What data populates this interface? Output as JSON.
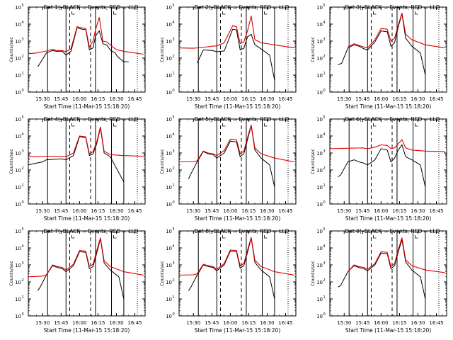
{
  "figure": {
    "start_time_label": "Start Time (11-Mar-15 15:18:20)",
    "ylabel": "Counts/sec",
    "xtick_labels": [
      "15:30",
      "15:45",
      "16:00",
      "16:15",
      "16:30",
      "16:45"
    ],
    "ytick_labels": [
      "10",
      "10",
      "10",
      "10",
      "10",
      "10"
    ],
    "ytick_exponents": [
      "0",
      "1",
      "2",
      "3",
      "4",
      "5"
    ],
    "colors": {
      "events": "#000000",
      "lld": "#e00000",
      "axes": "#000000"
    }
  },
  "chart_data": [
    {
      "type": "line",
      "title": "Det 1(–BLACK = Events, RED = LLD",
      "ylim": [
        1,
        100000
      ],
      "yscale": "log",
      "xlim": [
        "15:18:20",
        "16:53:20"
      ],
      "vlines_solid": [
        "15:34",
        "15:49",
        "16:13",
        "16:26",
        "16:36"
      ],
      "vlines_dashed": [
        "15:52",
        "16:09"
      ],
      "vlines_dotted": [
        "16:47"
      ],
      "series": [
        {
          "name": "Events",
          "color": "#000000",
          "x": [
            "15:26",
            "15:27",
            "15:33",
            "15:38",
            "15:41",
            "15:46",
            "15:49",
            "15:53",
            "15:58",
            "16:02",
            "16:05",
            "16:08",
            "16:11",
            "16:13",
            "16:16",
            "16:19",
            "16:22",
            "16:25",
            "16:29",
            "16:31",
            "16:36",
            "16:40"
          ],
          "y": [
            30,
            40,
            200,
            280,
            250,
            250,
            150,
            250,
            6000,
            5000,
            4800,
            300,
            400,
            2000,
            4000,
            700,
            600,
            300,
            200,
            120,
            60,
            60
          ]
        },
        {
          "name": "LLD",
          "color": "#e00000",
          "x": [
            "15:18",
            "15:25",
            "15:33",
            "15:38",
            "15:41",
            "15:46",
            "15:49",
            "15:53",
            "15:58",
            "16:02",
            "16:05",
            "16:08",
            "16:11",
            "16:13",
            "16:16",
            "16:19",
            "16:22",
            "16:25",
            "16:29",
            "16:31",
            "16:36",
            "16:52"
          ],
          "y": [
            180,
            200,
            260,
            330,
            280,
            270,
            240,
            350,
            7000,
            6000,
            5500,
            450,
            1000,
            4500,
            25000,
            1000,
            900,
            600,
            350,
            300,
            250,
            170
          ]
        }
      ]
    },
    {
      "type": "line",
      "title": "Det 2(–BLACK = Events, RED = LLD",
      "ylim": [
        1,
        100000
      ],
      "yscale": "log",
      "xlim": [
        "15:18:20",
        "16:53:20"
      ],
      "vlines_solid": [
        "15:34",
        "15:49",
        "16:13",
        "16:26",
        "16:36"
      ],
      "vlines_dashed": [
        "15:52",
        "16:09"
      ],
      "vlines_dotted": [
        "16:47"
      ],
      "series": [
        {
          "name": "Events",
          "color": "#000000",
          "x": [
            "15:33",
            "15:38",
            "15:45",
            "15:49",
            "15:55",
            "16:02",
            "16:05",
            "16:08",
            "16:11",
            "16:14",
            "16:17",
            "16:20",
            "16:25",
            "16:32",
            "16:36"
          ],
          "y": [
            50,
            300,
            280,
            240,
            260,
            5000,
            4500,
            300,
            380,
            1800,
            2500,
            600,
            350,
            150,
            5
          ]
        },
        {
          "name": "LLD",
          "color": "#e00000",
          "x": [
            "15:18",
            "15:30",
            "15:38",
            "15:45",
            "15:49",
            "15:55",
            "16:02",
            "16:05",
            "16:08",
            "16:11",
            "16:14",
            "16:17",
            "16:20",
            "16:25",
            "16:36",
            "16:52"
          ],
          "y": [
            400,
            380,
            420,
            500,
            520,
            800,
            8000,
            7000,
            700,
            900,
            4000,
            30000,
            1200,
            800,
            600,
            400
          ]
        }
      ]
    },
    {
      "type": "line",
      "title": "Det 3(–BLACK = Events, RED = LLD",
      "ylim": [
        1,
        100000
      ],
      "yscale": "log",
      "xlim": [
        "15:18:20",
        "16:53:20"
      ],
      "vlines_solid": [
        "15:34",
        "15:49",
        "16:13",
        "16:26",
        "16:36"
      ],
      "vlines_dashed": [
        "15:52",
        "16:09"
      ],
      "vlines_dotted": [
        "16:47"
      ],
      "series": [
        {
          "name": "Events",
          "color": "#000000",
          "x": [
            "15:25",
            "15:28",
            "15:33",
            "15:38",
            "15:42",
            "15:46",
            "15:49",
            "15:55",
            "16:00",
            "16:05",
            "16:08",
            "16:11",
            "16:14",
            "16:17",
            "16:20",
            "16:25",
            "16:32",
            "16:36"
          ],
          "y": [
            40,
            50,
            400,
            600,
            500,
            350,
            300,
            900,
            4000,
            3500,
            500,
            800,
            7000,
            40000,
            1500,
            500,
            200,
            10
          ]
        },
        {
          "name": "LLD",
          "color": "#e00000",
          "x": [
            "15:33",
            "15:38",
            "15:42",
            "15:46",
            "15:49",
            "15:55",
            "16:00",
            "16:05",
            "16:08",
            "16:11",
            "16:14",
            "16:17",
            "16:20",
            "16:25",
            "16:36",
            "16:52"
          ],
          "y": [
            450,
            700,
            550,
            450,
            400,
            1200,
            5500,
            5000,
            1000,
            1500,
            9000,
            45000,
            2500,
            1200,
            600,
            400
          ]
        }
      ]
    },
    {
      "type": "line",
      "title": "Det 4(–BLACK = Events, RED = LLD",
      "ylim": [
        1,
        100000
      ],
      "yscale": "log",
      "xlim": [
        "15:18:20",
        "16:53:20"
      ],
      "vlines_solid": [
        "15:34",
        "15:49",
        "16:13",
        "16:26",
        "16:36"
      ],
      "vlines_dashed": [
        "15:52",
        "16:09"
      ],
      "vlines_dotted": [
        "16:47"
      ],
      "series": [
        {
          "name": "Events",
          "color": "#000000",
          "x": [
            "15:18",
            "15:30",
            "15:33",
            "15:45",
            "15:49",
            "15:55",
            "16:00",
            "16:05",
            "16:08",
            "16:11",
            "16:14",
            "16:17",
            "16:20",
            "16:25",
            "16:36"
          ],
          "y": [
            200,
            300,
            400,
            450,
            400,
            700,
            9000,
            8000,
            700,
            900,
            3500,
            30000,
            1000,
            600,
            20
          ]
        },
        {
          "name": "LLD",
          "color": "#e00000",
          "x": [
            "15:18",
            "15:33",
            "15:45",
            "15:49",
            "15:55",
            "16:00",
            "16:05",
            "16:08",
            "16:11",
            "16:14",
            "16:17",
            "16:20",
            "16:25",
            "16:36",
            "16:52"
          ],
          "y": [
            600,
            650,
            650,
            600,
            1000,
            10000,
            9000,
            900,
            1200,
            4500,
            35000,
            1300,
            800,
            700,
            650
          ]
        }
      ]
    },
    {
      "type": "line",
      "title": "Det 5(–BLACK = Events, RED = LLD",
      "ylim": [
        1,
        100000
      ],
      "yscale": "log",
      "xlim": [
        "15:18:20",
        "16:53:20"
      ],
      "vlines_solid": [
        "15:34",
        "15:49",
        "16:13",
        "16:26",
        "16:36"
      ],
      "vlines_dashed": [
        "15:52",
        "16:09"
      ],
      "vlines_dotted": [
        "16:47"
      ],
      "series": [
        {
          "name": "Events",
          "color": "#000000",
          "x": [
            "15:26",
            "15:28",
            "15:33",
            "15:38",
            "15:42",
            "15:46",
            "15:49",
            "15:55",
            "16:00",
            "16:05",
            "16:08",
            "16:11",
            "16:14",
            "16:17",
            "16:20",
            "16:25",
            "16:32",
            "16:36"
          ],
          "y": [
            30,
            60,
            300,
            1200,
            900,
            800,
            500,
            1000,
            5000,
            4500,
            600,
            900,
            6000,
            40000,
            1500,
            500,
            200,
            10
          ]
        },
        {
          "name": "LLD",
          "color": "#e00000",
          "x": [
            "15:18",
            "15:30",
            "15:33",
            "15:38",
            "15:42",
            "15:46",
            "15:49",
            "15:55",
            "16:00",
            "16:05",
            "16:08",
            "16:11",
            "16:14",
            "16:17",
            "16:20",
            "16:25",
            "16:36",
            "16:52"
          ],
          "y": [
            300,
            300,
            350,
            1300,
            1000,
            900,
            700,
            1400,
            6500,
            6000,
            900,
            1300,
            8000,
            45000,
            2000,
            900,
            500,
            300
          ]
        }
      ]
    },
    {
      "type": "line",
      "title": "Det 6(–BLACK = Events, RED = LLD",
      "ylim": [
        1,
        100000
      ],
      "yscale": "log",
      "xlim": [
        "15:18:20",
        "16:53:20"
      ],
      "vlines_solid": [
        "15:34",
        "15:49",
        "16:13",
        "16:26",
        "16:36"
      ],
      "vlines_dashed": [
        "15:52",
        "16:09"
      ],
      "vlines_dotted": [
        "16:47"
      ],
      "series": [
        {
          "name": "Events",
          "color": "#000000",
          "x": [
            "15:25",
            "15:27",
            "15:33",
            "15:38",
            "15:42",
            "15:46",
            "15:49",
            "15:55",
            "16:00",
            "16:05",
            "16:08",
            "16:11",
            "16:14",
            "16:17",
            "16:20",
            "16:25",
            "16:32",
            "16:36"
          ],
          "y": [
            40,
            50,
            300,
            400,
            300,
            250,
            200,
            400,
            1800,
            1500,
            300,
            500,
            1500,
            3000,
            600,
            400,
            200,
            10
          ]
        },
        {
          "name": "LLD",
          "color": "#e00000",
          "x": [
            "15:18",
            "15:33",
            "15:45",
            "15:49",
            "15:55",
            "16:00",
            "16:05",
            "16:08",
            "16:11",
            "16:14",
            "16:17",
            "16:20",
            "16:25",
            "16:36",
            "16:52"
          ],
          "y": [
            1800,
            1900,
            2000,
            1800,
            2200,
            3000,
            2800,
            1800,
            2000,
            3500,
            6000,
            2000,
            1500,
            1300,
            1200
          ]
        }
      ]
    },
    {
      "type": "line",
      "title": "Det 7(–BLACK = Events, RED = LLD",
      "ylim": [
        1,
        100000
      ],
      "yscale": "log",
      "xlim": [
        "15:18:20",
        "16:53:20"
      ],
      "vlines_solid": [
        "15:34",
        "15:49",
        "16:13",
        "16:26",
        "16:36"
      ],
      "vlines_dashed": [
        "15:52",
        "16:09"
      ],
      "vlines_dotted": [
        "16:47"
      ],
      "series": [
        {
          "name": "Events",
          "color": "#000000",
          "x": [
            "15:26",
            "15:28",
            "15:33",
            "15:38",
            "15:42",
            "15:46",
            "15:49",
            "15:55",
            "16:00",
            "16:05",
            "16:08",
            "16:11",
            "16:14",
            "16:17",
            "16:20",
            "16:25",
            "16:32",
            "16:36"
          ],
          "y": [
            30,
            50,
            250,
            900,
            700,
            600,
            400,
            900,
            6000,
            5500,
            600,
            800,
            5000,
            35000,
            1300,
            500,
            200,
            10
          ]
        },
        {
          "name": "LLD",
          "color": "#e00000",
          "x": [
            "15:18",
            "15:30",
            "15:33",
            "15:38",
            "15:42",
            "15:46",
            "15:49",
            "15:55",
            "16:00",
            "16:05",
            "16:08",
            "16:11",
            "16:14",
            "16:17",
            "16:20",
            "16:25",
            "16:36",
            "16:52"
          ],
          "y": [
            200,
            220,
            260,
            1000,
            800,
            700,
            500,
            1100,
            7000,
            6500,
            800,
            1100,
            7000,
            40000,
            1800,
            800,
            400,
            250
          ]
        }
      ]
    },
    {
      "type": "line",
      "title": "Det 8(–BLACK = Events, RED = LLD",
      "ylim": [
        1,
        100000
      ],
      "yscale": "log",
      "xlim": [
        "15:18:20",
        "16:53:20"
      ],
      "vlines_solid": [
        "15:34",
        "15:49",
        "16:13",
        "16:26",
        "16:36"
      ],
      "vlines_dashed": [
        "15:52",
        "16:09"
      ],
      "vlines_dotted": [
        "16:47"
      ],
      "series": [
        {
          "name": "Events",
          "color": "#000000",
          "x": [
            "15:26",
            "15:28",
            "15:33",
            "15:38",
            "15:42",
            "15:46",
            "15:49",
            "15:55",
            "16:00",
            "16:05",
            "16:08",
            "16:11",
            "16:14",
            "16:17",
            "16:20",
            "16:25",
            "16:32",
            "16:36"
          ],
          "y": [
            30,
            50,
            250,
            1000,
            800,
            700,
            450,
            1000,
            6500,
            6000,
            650,
            900,
            5500,
            38000,
            1400,
            500,
            200,
            10
          ]
        },
        {
          "name": "LLD",
          "color": "#e00000",
          "x": [
            "15:18",
            "15:30",
            "15:33",
            "15:38",
            "15:42",
            "15:46",
            "15:49",
            "15:55",
            "16:00",
            "16:05",
            "16:08",
            "16:11",
            "16:14",
            "16:17",
            "16:20",
            "16:25",
            "16:36",
            "16:52"
          ],
          "y": [
            250,
            260,
            300,
            1100,
            900,
            800,
            550,
            1200,
            7500,
            7000,
            900,
            1200,
            7500,
            42000,
            1900,
            800,
            400,
            250
          ]
        }
      ]
    },
    {
      "type": "line",
      "title": "Det 9(–BLACK = Events, RED = LLD",
      "ylim": [
        1,
        100000
      ],
      "yscale": "log",
      "xlim": [
        "15:18:20",
        "16:53:20"
      ],
      "vlines_solid": [
        "15:34",
        "15:49",
        "16:13",
        "16:26",
        "16:36"
      ],
      "vlines_dashed": [
        "15:52",
        "16:09"
      ],
      "vlines_dotted": [
        "16:47"
      ],
      "series": [
        {
          "name": "Events",
          "color": "#000000",
          "x": [
            "15:25",
            "15:27",
            "15:33",
            "15:38",
            "15:42",
            "15:46",
            "15:49",
            "15:55",
            "16:00",
            "16:05",
            "16:08",
            "16:11",
            "16:14",
            "16:17",
            "16:20",
            "16:25",
            "16:32",
            "16:36"
          ],
          "y": [
            50,
            60,
            400,
            900,
            700,
            600,
            450,
            1000,
            5000,
            4500,
            600,
            900,
            6000,
            30000,
            1500,
            500,
            200,
            10
          ]
        },
        {
          "name": "LLD",
          "color": "#e00000",
          "x": [
            "15:33",
            "15:38",
            "15:42",
            "15:46",
            "15:49",
            "15:55",
            "16:00",
            "16:05",
            "16:08",
            "16:11",
            "16:14",
            "16:17",
            "16:20",
            "16:25",
            "16:36",
            "16:52"
          ],
          "y": [
            400,
            1000,
            800,
            700,
            550,
            1200,
            6000,
            5500,
            800,
            1200,
            8000,
            40000,
            2000,
            900,
            500,
            350
          ]
        }
      ]
    }
  ]
}
